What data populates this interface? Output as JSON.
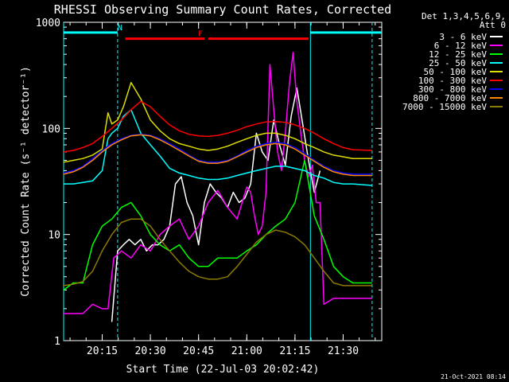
{
  "chart_data": {
    "type": "line",
    "title": "RHESSI Observing Summary Count Rates, Corrected",
    "xlabel": "Start Time (22-Jul-03 20:02:42)",
    "ylabel": "Corrected Count Rate (s⁻¹ detector⁻¹)",
    "yscale": "log",
    "ylim": [
      1,
      1000
    ],
    "xlim_minutes_utc": [
      20.05,
      21.7
    ],
    "x_unit": "hours (UTC decimal)",
    "x_ticks": [
      {
        "value": 20.25,
        "label": "20:15"
      },
      {
        "value": 20.5,
        "label": "20:30"
      },
      {
        "value": 20.75,
        "label": "20:45"
      },
      {
        "value": 21.0,
        "label": "21:00"
      },
      {
        "value": 21.25,
        "label": "21:15"
      },
      {
        "value": 21.5,
        "label": "21:30"
      }
    ],
    "y_ticks": [
      {
        "value": 1,
        "label": "1"
      },
      {
        "value": 10,
        "label": "10"
      },
      {
        "value": 100,
        "label": "100"
      },
      {
        "value": 1000,
        "label": "1000"
      }
    ],
    "legend_header": [
      "Det 1,3,4,5,6,9,",
      "Att 0"
    ],
    "series": [
      {
        "name": "3 - 6 keV",
        "color": "#ffffff",
        "x": [
          20.3,
          20.33,
          20.36,
          20.39,
          20.42,
          20.45,
          20.48,
          20.51,
          20.54,
          20.57,
          20.6,
          20.63,
          20.66,
          20.69,
          20.72,
          20.75,
          20.78,
          20.81,
          20.84,
          20.87,
          20.9,
          20.93,
          20.96,
          20.99,
          21.02,
          21.05,
          21.08,
          21.11,
          21.14,
          21.17,
          21.2,
          21.23,
          21.26,
          21.29,
          21.32,
          21.35,
          21.38
        ],
        "y": [
          1.5,
          7,
          8,
          9,
          8,
          9,
          7,
          8,
          8,
          9,
          12,
          30,
          35,
          20,
          15,
          8,
          20,
          30,
          25,
          22,
          18,
          25,
          20,
          22,
          30,
          90,
          60,
          50,
          120,
          70,
          45,
          130,
          240,
          110,
          50,
          25,
          40
        ]
      },
      {
        "name": "6 - 12 keV",
        "color": "#ff00ff",
        "x": [
          20.05,
          20.1,
          20.15,
          20.2,
          20.25,
          20.28,
          20.31,
          20.35,
          20.4,
          20.45,
          20.5,
          20.55,
          20.6,
          20.65,
          20.7,
          20.75,
          20.8,
          20.85,
          20.9,
          20.95,
          21.0,
          21.02,
          21.04,
          21.06,
          21.08,
          21.1,
          21.12,
          21.14,
          21.16,
          21.18,
          21.2,
          21.22,
          21.24,
          21.26,
          21.28,
          21.3,
          21.32,
          21.34,
          21.36,
          21.38,
          21.4,
          21.45,
          21.5,
          21.55,
          21.65
        ],
        "y": [
          1.8,
          1.8,
          1.8,
          2.2,
          2.0,
          2.0,
          6,
          7,
          6,
          8,
          7,
          10,
          12,
          14,
          9,
          12,
          20,
          26,
          18,
          14,
          28,
          25,
          15,
          10,
          12,
          25,
          400,
          150,
          60,
          40,
          90,
          250,
          520,
          180,
          90,
          50,
          35,
          45,
          20,
          20,
          2.2,
          2.5,
          2.5,
          2.5,
          2.5
        ]
      },
      {
        "name": "12 - 25 keV",
        "color": "#00ff00",
        "x": [
          20.05,
          20.1,
          20.15,
          20.2,
          20.25,
          20.3,
          20.35,
          20.4,
          20.45,
          20.5,
          20.55,
          20.6,
          20.65,
          20.7,
          20.75,
          20.8,
          20.85,
          20.9,
          20.95,
          21.0,
          21.05,
          21.1,
          21.15,
          21.2,
          21.25,
          21.3,
          21.35,
          21.4,
          21.45,
          21.5,
          21.55,
          21.65
        ],
        "y": [
          3.0,
          3.5,
          3.5,
          8,
          12,
          14,
          18,
          20,
          15,
          10,
          8,
          7,
          8,
          6,
          5,
          5,
          6,
          6,
          6,
          7,
          8,
          10,
          12,
          14,
          20,
          50,
          15,
          9,
          5,
          4,
          3.5,
          3.5
        ]
      },
      {
        "name": "25 - 50 keV",
        "color": "#00ffff",
        "x": [
          20.05,
          20.1,
          20.15,
          20.2,
          20.25,
          20.28,
          20.3,
          20.33,
          20.36,
          20.4,
          20.45,
          20.5,
          20.55,
          20.6,
          20.65,
          20.7,
          20.75,
          20.8,
          20.85,
          20.9,
          20.95,
          21.0,
          21.05,
          21.1,
          21.15,
          21.2,
          21.25,
          21.3,
          21.35,
          21.4,
          21.45,
          21.5,
          21.55,
          21.65
        ],
        "y": [
          30,
          30,
          31,
          32,
          40,
          80,
          90,
          100,
          130,
          150,
          90,
          70,
          55,
          42,
          38,
          36,
          34,
          33,
          33,
          34,
          36,
          38,
          40,
          42,
          44,
          44,
          42,
          40,
          36,
          34,
          31,
          30,
          30,
          29
        ]
      },
      {
        "name": "50 - 100 keV",
        "color": "#dddd00",
        "x": [
          20.05,
          20.1,
          20.15,
          20.2,
          20.25,
          20.28,
          20.3,
          20.33,
          20.36,
          20.4,
          20.45,
          20.5,
          20.55,
          20.6,
          20.65,
          20.7,
          20.75,
          20.8,
          20.85,
          20.9,
          20.95,
          21.0,
          21.05,
          21.1,
          21.15,
          21.2,
          21.25,
          21.3,
          21.35,
          21.4,
          21.45,
          21.5,
          21.55,
          21.65
        ],
        "y": [
          48,
          50,
          52,
          56,
          64,
          140,
          110,
          120,
          160,
          270,
          190,
          120,
          95,
          80,
          72,
          68,
          64,
          62,
          64,
          68,
          74,
          80,
          86,
          90,
          90,
          86,
          80,
          72,
          66,
          60,
          56,
          54,
          52,
          52
        ]
      },
      {
        "name": "100 - 300 keV",
        "color": "#ff0000",
        "x": [
          20.05,
          20.1,
          20.15,
          20.2,
          20.25,
          20.3,
          20.35,
          20.4,
          20.45,
          20.5,
          20.55,
          20.6,
          20.65,
          20.7,
          20.75,
          20.8,
          20.85,
          20.9,
          20.95,
          21.0,
          21.05,
          21.1,
          21.15,
          21.2,
          21.25,
          21.3,
          21.35,
          21.4,
          21.45,
          21.5,
          21.55,
          21.65
        ],
        "y": [
          60,
          62,
          66,
          72,
          84,
          100,
          120,
          150,
          180,
          160,
          130,
          108,
          95,
          88,
          85,
          84,
          86,
          90,
          96,
          104,
          110,
          115,
          116,
          114,
          108,
          100,
          90,
          80,
          72,
          66,
          63,
          62
        ]
      },
      {
        "name": "300 - 800 keV",
        "color": "#0000ff",
        "x": [
          20.05,
          20.1,
          20.15,
          20.2,
          20.25,
          20.3,
          20.35,
          20.4,
          20.45,
          20.5,
          20.55,
          20.6,
          20.65,
          20.7,
          20.75,
          20.8,
          20.85,
          20.9,
          20.95,
          21.0,
          21.05,
          21.1,
          21.15,
          21.2,
          21.25,
          21.3,
          21.35,
          21.4,
          21.45,
          21.5,
          21.55,
          21.65
        ],
        "y": [
          38,
          40,
          44,
          52,
          62,
          72,
          80,
          86,
          88,
          86,
          80,
          72,
          64,
          56,
          50,
          48,
          48,
          50,
          55,
          62,
          68,
          72,
          74,
          72,
          66,
          58,
          50,
          44,
          40,
          38,
          37,
          37
        ]
      },
      {
        "name": "800 - 7000 keV",
        "color": "#ff8800",
        "x": [
          20.05,
          20.1,
          20.15,
          20.2,
          20.25,
          20.3,
          20.35,
          20.4,
          20.45,
          20.5,
          20.55,
          20.6,
          20.65,
          20.7,
          20.75,
          20.8,
          20.85,
          20.9,
          20.95,
          21.0,
          21.05,
          21.1,
          21.15,
          21.2,
          21.25,
          21.3,
          21.35,
          21.4,
          21.45,
          21.5,
          21.55,
          21.65
        ],
        "y": [
          37,
          39,
          43,
          50,
          60,
          70,
          78,
          85,
          87,
          85,
          78,
          70,
          62,
          55,
          49,
          47,
          47,
          49,
          54,
          60,
          66,
          70,
          72,
          70,
          64,
          56,
          49,
          43,
          39,
          37,
          36,
          36
        ]
      },
      {
        "name": "7000 - 15000 keV",
        "color": "#8b7a00",
        "x": [
          20.05,
          20.1,
          20.15,
          20.2,
          20.25,
          20.3,
          20.35,
          20.4,
          20.45,
          20.5,
          20.55,
          20.6,
          20.65,
          20.7,
          20.75,
          20.8,
          20.85,
          20.9,
          20.95,
          21.0,
          21.05,
          21.1,
          21.15,
          21.2,
          21.25,
          21.3,
          21.35,
          21.4,
          21.45,
          21.5,
          21.55,
          21.65
        ],
        "y": [
          3.3,
          3.4,
          3.6,
          4.5,
          7,
          10,
          13,
          14,
          14,
          12,
          9,
          7,
          5.5,
          4.5,
          4,
          3.8,
          3.8,
          4,
          5,
          6.5,
          8.5,
          10,
          11,
          10.5,
          9.5,
          8,
          6,
          4.5,
          3.5,
          3.3,
          3.3,
          3.3
        ]
      }
    ],
    "annotations": [
      {
        "type": "flag-bar",
        "label": "N",
        "color": "#00ffff",
        "segments": [
          [
            20.05,
            20.33
          ],
          [
            21.33,
            21.7
          ]
        ],
        "level": 800
      },
      {
        "type": "flag-bar",
        "label": "F",
        "color": "#ff0000",
        "segments": [
          [
            20.37,
            20.78
          ],
          [
            20.8,
            21.32
          ]
        ],
        "level": 700
      },
      {
        "type": "vline",
        "color": "#00ffff",
        "style": "dashed",
        "x": 20.33
      },
      {
        "type": "vline",
        "color": "#00ffff",
        "style": "solid",
        "x": 21.33
      },
      {
        "type": "vline",
        "color": "#00ffff",
        "style": "dashed",
        "x": 21.65
      },
      {
        "type": "vline",
        "color": "#00ffff",
        "style": "solid",
        "x": 20.05
      }
    ],
    "footer_date": "21-Oct-2021 08:14"
  }
}
